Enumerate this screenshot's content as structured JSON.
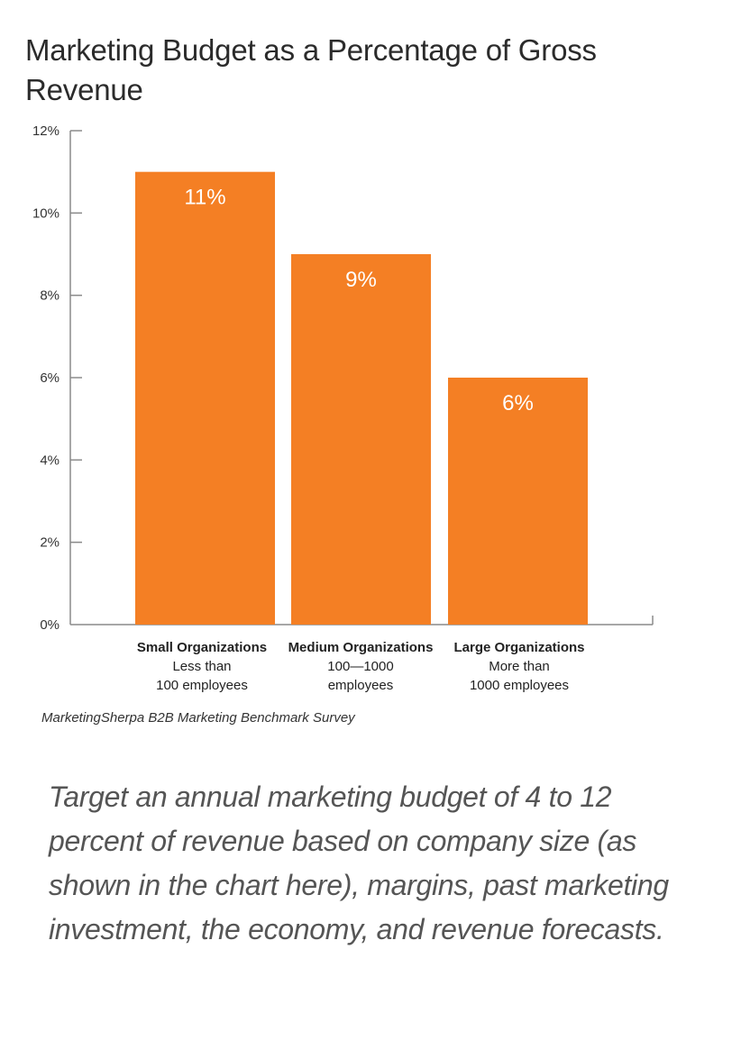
{
  "caption": "Target an annual marketing budget of 4 to 12 percent of revenue based on company size (as shown in the chart here), margins, past marketing investment, the economy, and revenue forecasts.",
  "colors": {
    "bar": "#F47F24",
    "axis": "#8a8a8a",
    "value_label": "#ffffff"
  },
  "chart_data": {
    "type": "bar",
    "title": "Marketing Budget as a Percentage of Gross Revenue",
    "source": "MarketingSherpa B2B Marketing Benchmark Survey",
    "xlabel": "",
    "ylabel": "",
    "ylim": [
      0,
      12
    ],
    "grid": false,
    "y_ticks": [
      0,
      2,
      4,
      6,
      8,
      10,
      12
    ],
    "y_tick_labels": [
      "0%",
      "2%",
      "4%",
      "6%",
      "8%",
      "10%",
      "12%"
    ],
    "categories": [
      "Small Organizations",
      "Medium Organizations",
      "Large Organizations"
    ],
    "category_subtitles": [
      [
        "Less than",
        "100 employees"
      ],
      [
        "100—1000",
        "employees"
      ],
      [
        "More than",
        "1000 employees"
      ]
    ],
    "values": [
      11,
      9,
      6
    ],
    "value_labels": [
      "11%",
      "9%",
      "6%"
    ]
  }
}
